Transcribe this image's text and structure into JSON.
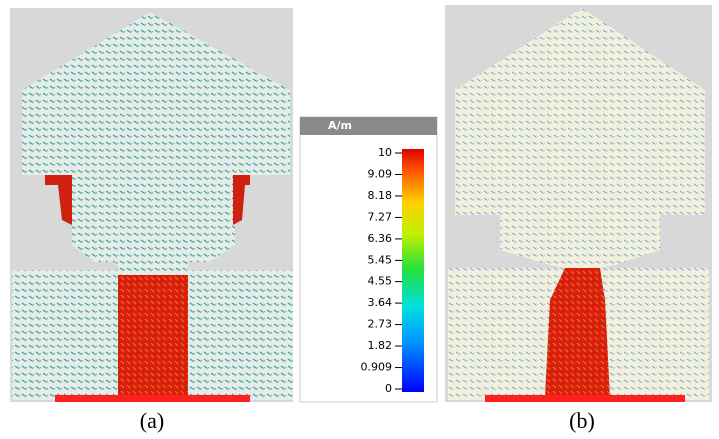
{
  "colorbar": {
    "unit": "A/m",
    "ticks": [
      10,
      9.09,
      8.18,
      7.27,
      6.36,
      5.45,
      4.55,
      3.64,
      2.73,
      1.82,
      0.909,
      0
    ]
  },
  "captions": [
    "(a)",
    "(b)"
  ]
}
